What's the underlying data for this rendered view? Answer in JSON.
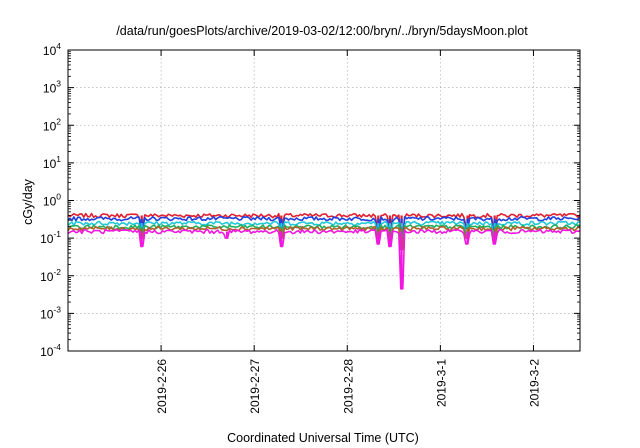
{
  "chart_data": {
    "type": "line",
    "title": "/data/run/goesPlots/archive/2019-03-02/12:00/bryn/../bryn/5daysMoon.plot",
    "xlabel": "Coordinated Universal Time (UTC)",
    "ylabel": "cGy/day",
    "y_scale": "log",
    "ylim": [
      0.0001,
      10000
    ],
    "xlim": [
      "2019-02-25 00:00",
      "2019-03-02 12:00"
    ],
    "grid": true,
    "legend": "none",
    "y_ticks": [
      {
        "value": 0.0001,
        "base": "10",
        "exp": "-4"
      },
      {
        "value": 0.001,
        "base": "10",
        "exp": "-3"
      },
      {
        "value": 0.01,
        "base": "10",
        "exp": "-2"
      },
      {
        "value": 0.1,
        "base": "10",
        "exp": "-1"
      },
      {
        "value": 1,
        "base": "10",
        "exp": "0"
      },
      {
        "value": 10,
        "base": "10",
        "exp": "1"
      },
      {
        "value": 100,
        "base": "10",
        "exp": "2"
      },
      {
        "value": 1000,
        "base": "10",
        "exp": "3"
      },
      {
        "value": 10000,
        "base": "10",
        "exp": "4"
      }
    ],
    "x_ticks": [
      {
        "value": "2019-02-26 00:00",
        "label": "2019-2-26"
      },
      {
        "value": "2019-02-27 00:00",
        "label": "2019-2-27"
      },
      {
        "value": "2019-02-28 00:00",
        "label": "2019-2-28"
      },
      {
        "value": "2019-03-01 00:00",
        "label": "2019-3-1"
      },
      {
        "value": "2019-03-02 00:00",
        "label": "2019-3-2"
      }
    ],
    "series": [
      {
        "color": "#e0202e",
        "level": 0.4,
        "dips": [
          [
            "2019-02-25 19:00",
            0.22
          ],
          [
            "2019-02-27 07:00",
            0.25
          ],
          [
            "2019-02-28 08:00",
            0.2
          ],
          [
            "2019-02-28 11:00",
            0.22
          ],
          [
            "2019-02-28 14:00",
            0.12
          ],
          [
            "2019-03-01 07:00",
            0.22
          ],
          [
            "2019-03-01 14:00",
            0.2
          ]
        ]
      },
      {
        "color": "#2040e0",
        "level": 0.33,
        "dips": [
          [
            "2019-02-25 19:00",
            0.18
          ],
          [
            "2019-02-27 07:00",
            0.2
          ],
          [
            "2019-02-28 08:00",
            0.15
          ],
          [
            "2019-02-28 11:00",
            0.15
          ],
          [
            "2019-02-28 14:00",
            0.09
          ],
          [
            "2019-03-01 07:00",
            0.18
          ],
          [
            "2019-03-01 14:00",
            0.15
          ]
        ]
      },
      {
        "color": "#20c8d8",
        "level": 0.25,
        "dips": [
          [
            "2019-02-25 19:00",
            0.14
          ],
          [
            "2019-02-27 07:00",
            0.15
          ],
          [
            "2019-02-28 08:00",
            0.12
          ],
          [
            "2019-02-28 11:00",
            0.12
          ],
          [
            "2019-02-28 14:00",
            0.07
          ],
          [
            "2019-03-01 07:00",
            0.14
          ],
          [
            "2019-03-01 14:00",
            0.12
          ]
        ]
      },
      {
        "color": "#20b060",
        "level": 0.2,
        "dips": [
          [
            "2019-02-25 19:00",
            0.12
          ],
          [
            "2019-02-27 07:00",
            0.12
          ],
          [
            "2019-02-28 08:00",
            0.1
          ],
          [
            "2019-02-28 11:00",
            0.1
          ],
          [
            "2019-02-28 14:00",
            0.06
          ],
          [
            "2019-03-01 07:00",
            0.12
          ],
          [
            "2019-03-01 14:00",
            0.1
          ]
        ]
      },
      {
        "color": "#b06028",
        "level": 0.18,
        "dips": [
          [
            "2019-02-25 19:00",
            0.1
          ],
          [
            "2019-02-27 07:00",
            0.1
          ],
          [
            "2019-02-28 08:00",
            0.08
          ],
          [
            "2019-02-28 11:00",
            0.08
          ],
          [
            "2019-02-28 14:00",
            0.05
          ],
          [
            "2019-03-01 07:00",
            0.1
          ],
          [
            "2019-03-01 14:00",
            0.08
          ]
        ]
      },
      {
        "color": "#f018e0",
        "level": 0.15,
        "dips": [
          [
            "2019-02-25 19:00",
            0.06
          ],
          [
            "2019-02-26 17:00",
            0.1
          ],
          [
            "2019-02-27 07:00",
            0.06
          ],
          [
            "2019-02-28 08:00",
            0.07
          ],
          [
            "2019-02-28 11:00",
            0.06
          ],
          [
            "2019-02-28 14:00",
            0.0045
          ],
          [
            "2019-03-01 07:00",
            0.07
          ],
          [
            "2019-03-01 14:00",
            0.07
          ]
        ]
      }
    ]
  }
}
